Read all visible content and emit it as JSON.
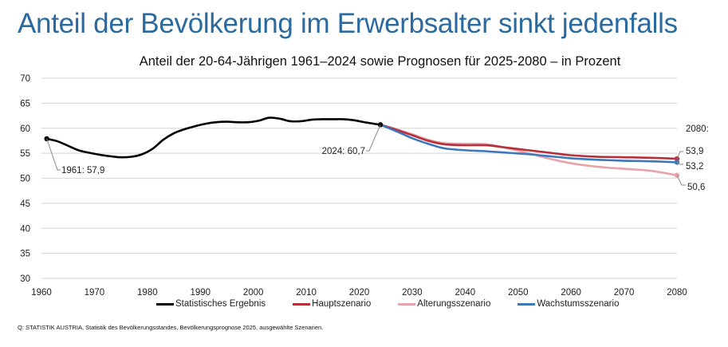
{
  "page": {
    "title": "Anteil der Bevölkerung im Erwerbsalter sinkt jedenfalls",
    "source": "Q: STATISTIK AUSTRIA, Statistik des Bevölkerungsstandes,  Bevölkerungsprognose  2025, ausgewählte Szenarien."
  },
  "chart_data": {
    "type": "line",
    "title": "Anteil der 20-64-Jährigen 1961–2024 sowie Prognosen für 2025-2080 – in Prozent",
    "xlabel": "",
    "ylabel": "",
    "xlim": [
      1960,
      2080
    ],
    "ylim": [
      30,
      70
    ],
    "x_ticks": [
      1960,
      1970,
      1980,
      1990,
      2000,
      2010,
      2020,
      2030,
      2040,
      2050,
      2060,
      2070,
      2080
    ],
    "y_ticks": [
      30,
      35,
      40,
      45,
      50,
      55,
      60,
      65,
      70
    ],
    "grid": true,
    "legend_position": "bottom",
    "series": [
      {
        "name": "Statistisches Ergebnis",
        "color": "#000000",
        "x": [
          1961,
          1963,
          1965,
          1967,
          1969,
          1971,
          1973,
          1975,
          1977,
          1979,
          1981,
          1983,
          1985,
          1987,
          1989,
          1991,
          1993,
          1995,
          1997,
          1999,
          2001,
          2003,
          2005,
          2007,
          2009,
          2011,
          2013,
          2015,
          2017,
          2019,
          2021,
          2024
        ],
        "values": [
          57.9,
          57.4,
          56.5,
          55.6,
          55.1,
          54.7,
          54.4,
          54.2,
          54.3,
          54.8,
          55.9,
          57.7,
          59.0,
          59.8,
          60.4,
          60.9,
          61.2,
          61.3,
          61.2,
          61.2,
          61.5,
          62.1,
          61.9,
          61.4,
          61.4,
          61.7,
          61.8,
          61.8,
          61.8,
          61.6,
          61.2,
          60.7
        ]
      },
      {
        "name": "Hauptszenario",
        "color": "#b5303a",
        "x": [
          2024,
          2027,
          2030,
          2033,
          2036,
          2040,
          2044,
          2048,
          2052,
          2056,
          2060,
          2065,
          2070,
          2075,
          2080
        ],
        "values": [
          60.7,
          59.7,
          58.6,
          57.5,
          56.8,
          56.6,
          56.6,
          56.1,
          55.6,
          55.1,
          54.6,
          54.3,
          54.2,
          54.1,
          53.9
        ]
      },
      {
        "name": "Alterungsszenario",
        "color": "#e8a3ab",
        "x": [
          2024,
          2027,
          2030,
          2033,
          2036,
          2040,
          2044,
          2048,
          2052,
          2056,
          2060,
          2065,
          2070,
          2075,
          2080
        ],
        "values": [
          60.7,
          59.8,
          58.8,
          57.7,
          57.0,
          56.9,
          56.8,
          56.0,
          55.0,
          53.9,
          53.0,
          52.3,
          51.9,
          51.5,
          50.6
        ]
      },
      {
        "name": "Wachstumsszenario",
        "color": "#3d78bb",
        "x": [
          2024,
          2027,
          2030,
          2033,
          2036,
          2040,
          2044,
          2048,
          2052,
          2056,
          2060,
          2065,
          2070,
          2075,
          2080
        ],
        "values": [
          60.7,
          59.4,
          58.0,
          56.9,
          56.0,
          55.6,
          55.4,
          55.1,
          54.8,
          54.4,
          54.0,
          53.7,
          53.5,
          53.4,
          53.2
        ]
      }
    ],
    "annotations": [
      {
        "label": "1961: 57,9",
        "series": "Statistisches Ergebnis",
        "x": 1961,
        "y": 57.9
      },
      {
        "label": "2024: 60,7",
        "series": "Statistisches Ergebnis",
        "x": 2024,
        "y": 60.7
      },
      {
        "label": "2080:",
        "x": 2080
      },
      {
        "label": "53,9",
        "series": "Hauptszenario",
        "x": 2080,
        "y": 53.9
      },
      {
        "label": "53,2",
        "series": "Wachstumsszenario",
        "x": 2080,
        "y": 53.2
      },
      {
        "label": "50,6",
        "series": "Alterungsszenario",
        "x": 2080,
        "y": 50.6
      }
    ]
  }
}
